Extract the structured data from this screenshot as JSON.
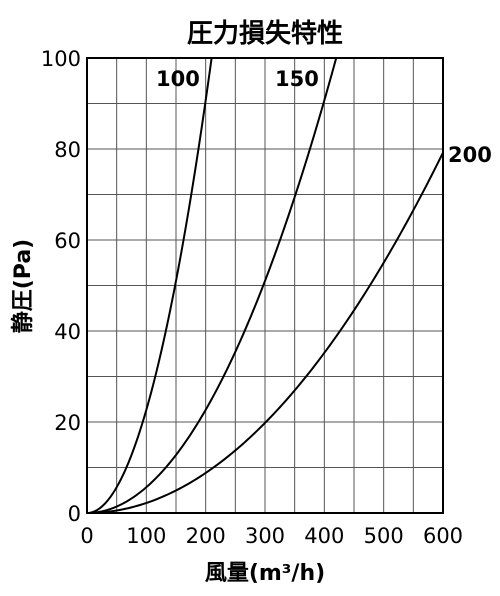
{
  "chart_data": {
    "type": "line",
    "title": "圧力損失特性",
    "xlabel": "風量(m³/h)",
    "ylabel": "静圧(Pa)",
    "xlim": [
      0,
      600
    ],
    "ylim": [
      0,
      100
    ],
    "x_ticks": [
      "0",
      "100",
      "200",
      "300",
      "400",
      "500",
      "600"
    ],
    "y_ticks": [
      "0",
      "20",
      "40",
      "60",
      "80",
      "100"
    ],
    "grid": true,
    "series": [
      {
        "name": "100",
        "x": [
          0,
          25,
          50,
          75,
          100,
          125,
          150,
          175,
          200,
          210
        ],
        "y": [
          0,
          1.4,
          5.7,
          12.8,
          22.7,
          35.4,
          51,
          69.4,
          90.7,
          100
        ]
      },
      {
        "name": "150",
        "x": [
          0,
          50,
          100,
          150,
          200,
          250,
          300,
          350,
          400,
          420
        ],
        "y": [
          0,
          1.4,
          5.7,
          12.8,
          22.7,
          35.4,
          51,
          69.4,
          90.7,
          100
        ]
      },
      {
        "name": "200",
        "x": [
          0,
          100,
          200,
          300,
          400,
          500,
          600
        ],
        "y": [
          0,
          2.2,
          8.8,
          19.8,
          35.2,
          55,
          79.2
        ]
      }
    ]
  }
}
